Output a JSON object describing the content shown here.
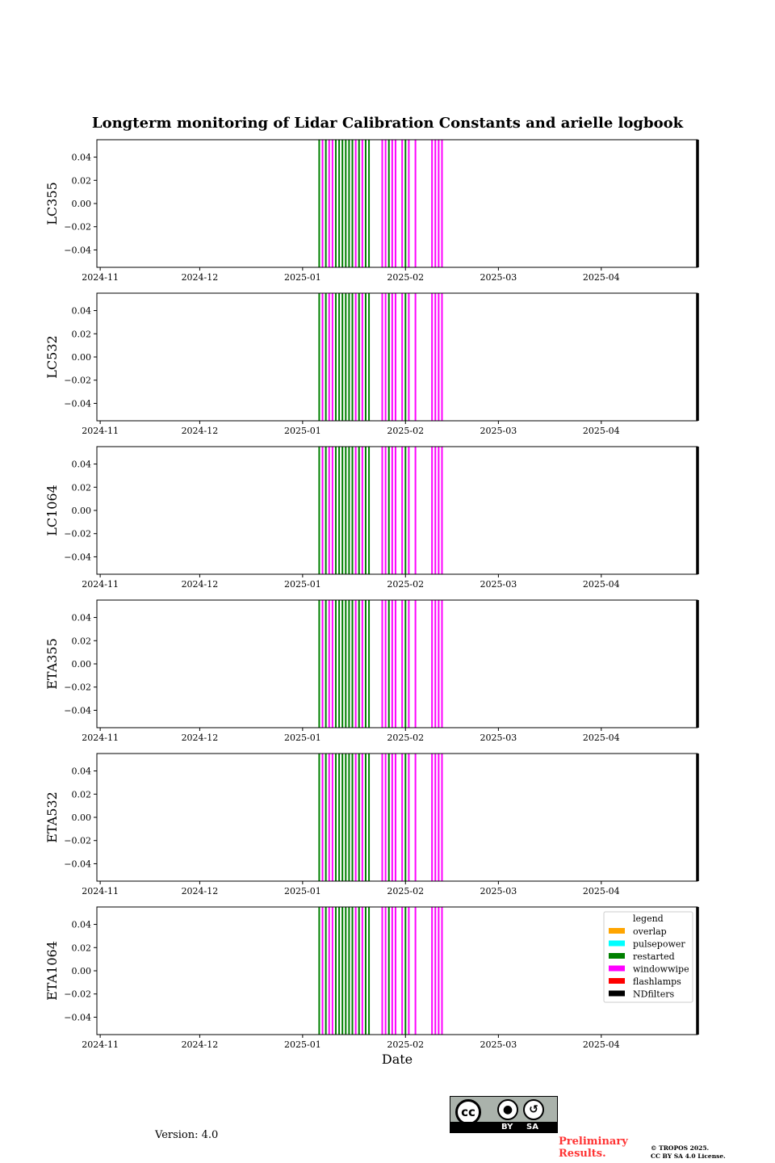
{
  "chart_data": {
    "type": "timeline",
    "title": "Longterm monitoring of Lidar Calibration Constants and arielle logbook",
    "xlabel": "Date",
    "x_range": [
      "2024-10-31",
      "2025-04-30"
    ],
    "x_ticks": [
      "2024-11",
      "2024-12",
      "2025-01",
      "2025-02",
      "2025-03",
      "2025-04"
    ],
    "x_tick_dates": [
      "2024-11-01",
      "2024-12-01",
      "2025-01-01",
      "2025-02-01",
      "2025-03-01",
      "2025-04-01"
    ],
    "ylim": [
      -0.055,
      0.055
    ],
    "y_ticks": [
      0.04,
      0.02,
      0.0,
      -0.02,
      -0.04
    ],
    "y_tick_labels": [
      "0.04",
      "0.02",
      "0.00",
      "−0.02",
      "−0.04"
    ],
    "panels": [
      {
        "ylabel": "LC355"
      },
      {
        "ylabel": "LC532"
      },
      {
        "ylabel": "LC1064"
      },
      {
        "ylabel": "ETA355"
      },
      {
        "ylabel": "ETA532"
      },
      {
        "ylabel": "ETA1064"
      }
    ],
    "events": [
      {
        "date": "2025-01-06",
        "type": "restarted"
      },
      {
        "date": "2025-01-07",
        "type": "windowwipe"
      },
      {
        "date": "2025-01-08",
        "type": "restarted"
      },
      {
        "date": "2025-01-09",
        "type": "windowwipe"
      },
      {
        "date": "2025-01-10",
        "type": "windowwipe"
      },
      {
        "date": "2025-01-11",
        "type": "restarted"
      },
      {
        "date": "2025-01-12",
        "type": "restarted"
      },
      {
        "date": "2025-01-13",
        "type": "restarted"
      },
      {
        "date": "2025-01-14",
        "type": "restarted"
      },
      {
        "date": "2025-01-15",
        "type": "restarted"
      },
      {
        "date": "2025-01-16",
        "type": "restarted"
      },
      {
        "date": "2025-01-17",
        "type": "windowwipe"
      },
      {
        "date": "2025-01-18",
        "type": "restarted"
      },
      {
        "date": "2025-01-19",
        "type": "windowwipe"
      },
      {
        "date": "2025-01-20",
        "type": "restarted"
      },
      {
        "date": "2025-01-21",
        "type": "restarted"
      },
      {
        "date": "2025-01-25",
        "type": "windowwipe"
      },
      {
        "date": "2025-01-26",
        "type": "windowwipe"
      },
      {
        "date": "2025-01-27",
        "type": "restarted"
      },
      {
        "date": "2025-01-28",
        "type": "windowwipe"
      },
      {
        "date": "2025-01-29",
        "type": "windowwipe"
      },
      {
        "date": "2025-01-31",
        "type": "windowwipe"
      },
      {
        "date": "2025-02-01",
        "type": "restarted"
      },
      {
        "date": "2025-02-02",
        "type": "windowwipe"
      },
      {
        "date": "2025-02-04",
        "type": "windowwipe"
      },
      {
        "date": "2025-02-09",
        "type": "windowwipe"
      },
      {
        "date": "2025-02-10",
        "type": "windowwipe"
      },
      {
        "date": "2025-02-11",
        "type": "windowwipe"
      },
      {
        "date": "2025-02-12",
        "type": "windowwipe"
      },
      {
        "date": "2025-04-30",
        "type": "NDfilters"
      }
    ],
    "legend": {
      "title": "legend",
      "location": "upper right of bottom panel",
      "entries": [
        {
          "name": "overlap",
          "color": "#ffa500"
        },
        {
          "name": "pulsepower",
          "color": "#00ffff"
        },
        {
          "name": "restarted",
          "color": "#008000"
        },
        {
          "name": "windowwipe",
          "color": "#ff00ff"
        },
        {
          "name": "flashlamps",
          "color": "#ff0000"
        },
        {
          "name": "NDfilters",
          "color": "#000000"
        }
      ]
    },
    "grid": false
  },
  "footer": {
    "version": "Version: 4.0",
    "license_badge": {
      "by": "BY",
      "sa": "SA",
      "cc": "cc"
    },
    "preliminary": "Preliminary Results.",
    "copyright_line1": "© TROPOS 2025.",
    "copyright_line2": "CC BY SA 4.0 License."
  }
}
